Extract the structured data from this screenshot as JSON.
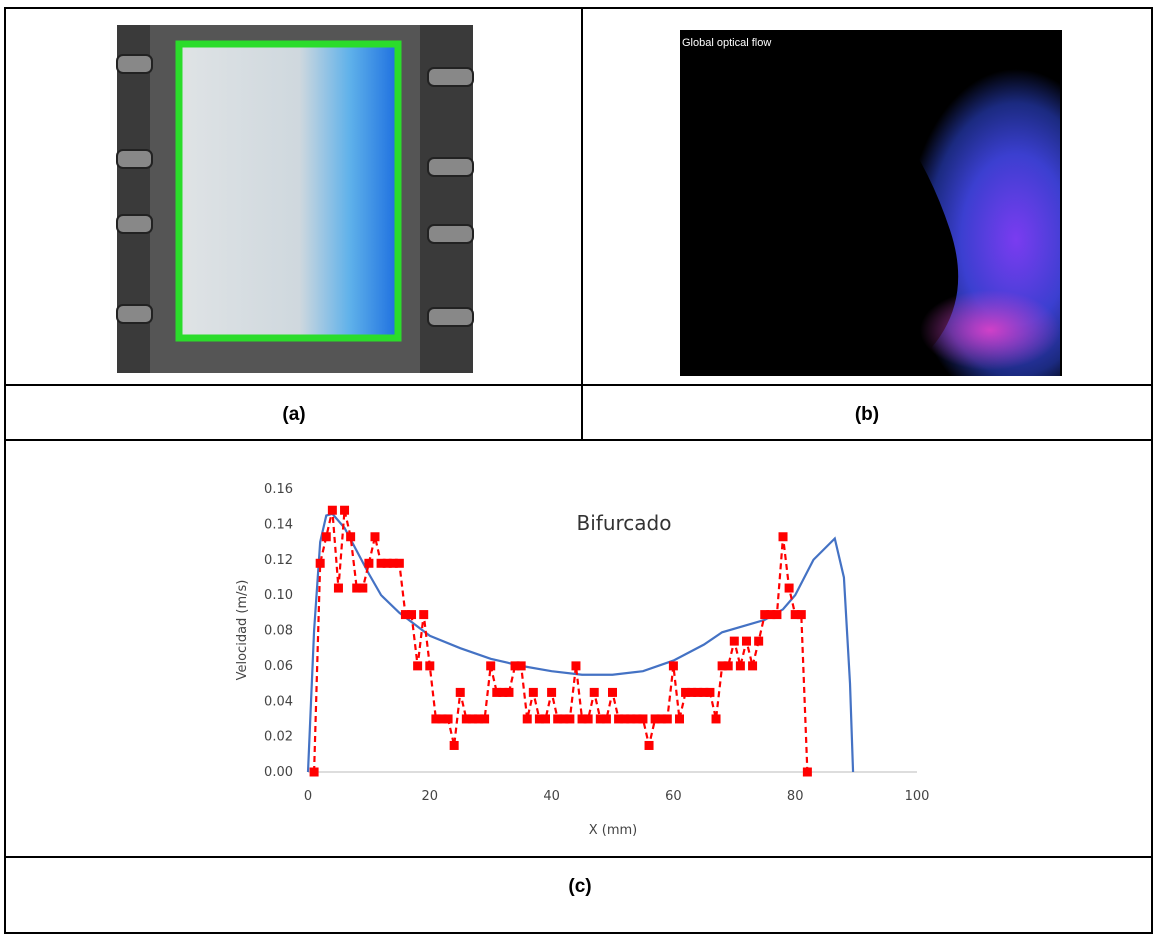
{
  "panel_a": {
    "label": "(a)"
  },
  "panel_b": {
    "label": "(b)",
    "overlay_text": "Global optical flow"
  },
  "panel_c": {
    "label": "(c)"
  },
  "chart_data": {
    "type": "line",
    "annotation": "Bifurcado",
    "x_label": "X (mm)",
    "y_label": "Velocidad (m/s)",
    "xlim": [
      0,
      100
    ],
    "xticks": [
      0,
      20,
      40,
      60,
      80,
      100
    ],
    "ylim": [
      0,
      0.16
    ],
    "yticks": [
      {
        "value": 0,
        "label": "0.00"
      },
      {
        "value": 0.02,
        "label": "0.02"
      },
      {
        "value": 0.04,
        "label": "0.04"
      },
      {
        "value": 0.06,
        "label": "0.06"
      },
      {
        "value": 0.08,
        "label": "0.08"
      },
      {
        "value": 0.1,
        "label": "0.10"
      },
      {
        "value": 0.12,
        "label": "0.12"
      },
      {
        "value": 0.14,
        "label": "0.14"
      },
      {
        "value": 0.16,
        "label": "0.16"
      }
    ],
    "grid": false,
    "series": [
      {
        "color": "#4472c4",
        "style": "solid",
        "markers": false,
        "x": [
          0,
          1,
          2,
          3,
          4,
          6,
          8,
          10,
          12,
          15,
          20,
          25,
          30,
          35,
          40,
          45,
          50,
          55,
          60,
          65,
          68,
          72,
          75,
          78,
          80,
          83,
          86.5,
          88,
          89,
          89.5
        ],
        "values": [
          0,
          0.08,
          0.13,
          0.145,
          0.146,
          0.138,
          0.125,
          0.112,
          0.1,
          0.09,
          0.077,
          0.07,
          0.064,
          0.06,
          0.057,
          0.055,
          0.055,
          0.057,
          0.063,
          0.072,
          0.079,
          0.083,
          0.086,
          0.092,
          0.1,
          0.12,
          0.132,
          0.11,
          0.05,
          0
        ]
      },
      {
        "color": "#ff0000",
        "style": "dashed",
        "markers": true,
        "x": [
          1,
          2,
          3,
          4,
          5,
          6,
          7,
          8,
          9,
          10,
          11,
          12,
          13,
          14,
          15,
          16,
          17,
          18,
          19,
          20,
          21,
          22,
          23,
          24,
          25,
          26,
          27,
          28,
          29,
          30,
          31,
          32,
          33,
          34,
          35,
          36,
          37,
          38,
          39,
          40,
          41,
          42,
          43,
          44,
          45,
          46,
          47,
          48,
          49,
          50,
          51,
          52,
          53,
          54,
          55,
          56,
          57,
          58,
          59,
          60,
          61,
          62,
          63,
          64,
          65,
          66,
          67,
          68,
          69,
          70,
          71,
          72,
          73,
          74,
          75,
          76,
          77,
          78,
          79,
          80,
          81,
          82
        ],
        "values": [
          0,
          0.118,
          0.133,
          0.148,
          0.104,
          0.148,
          0.133,
          0.104,
          0.104,
          0.118,
          0.133,
          0.118,
          0.118,
          0.118,
          0.118,
          0.089,
          0.089,
          0.06,
          0.089,
          0.06,
          0.03,
          0.03,
          0.03,
          0.015,
          0.045,
          0.03,
          0.03,
          0.03,
          0.03,
          0.06,
          0.045,
          0.045,
          0.045,
          0.06,
          0.06,
          0.03,
          0.045,
          0.03,
          0.03,
          0.045,
          0.03,
          0.03,
          0.03,
          0.06,
          0.03,
          0.03,
          0.045,
          0.03,
          0.03,
          0.045,
          0.03,
          0.03,
          0.03,
          0.03,
          0.03,
          0.015,
          0.03,
          0.03,
          0.03,
          0.06,
          0.03,
          0.045,
          0.045,
          0.045,
          0.045,
          0.045,
          0.03,
          0.06,
          0.06,
          0.074,
          0.06,
          0.074,
          0.06,
          0.074,
          0.089,
          0.089,
          0.089,
          0.133,
          0.104,
          0.089,
          0.089,
          0
        ]
      }
    ]
  }
}
